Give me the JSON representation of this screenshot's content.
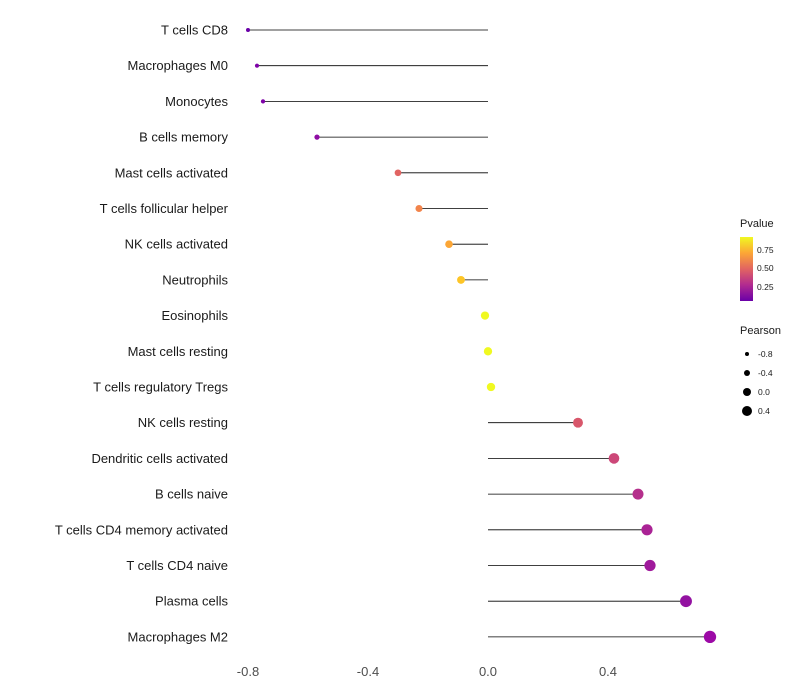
{
  "chart_data": {
    "type": "lollipop",
    "title": "",
    "xlabel": "",
    "ylabel": "",
    "x_ticks": [
      "-0.8",
      "-0.4",
      "0.0",
      "0.4"
    ],
    "xlim": [
      -0.9,
      0.85
    ],
    "grid": false,
    "legend_position": "right",
    "points": [
      {
        "label": "T cells CD8",
        "pearson": -0.8,
        "color": "#6a00a8"
      },
      {
        "label": "Macrophages M0",
        "pearson": -0.77,
        "color": "#7e03a8"
      },
      {
        "label": "Monocytes",
        "pearson": -0.75,
        "color": "#7e03a8"
      },
      {
        "label": "B cells memory",
        "pearson": -0.57,
        "color": "#8f0da4"
      },
      {
        "label": "Mast cells activated",
        "pearson": -0.3,
        "color": "#e16462"
      },
      {
        "label": "T cells follicular helper",
        "pearson": -0.23,
        "color": "#f2844b"
      },
      {
        "label": "NK cells activated",
        "pearson": -0.13,
        "color": "#fca636"
      },
      {
        "label": "Neutrophils",
        "pearson": -0.09,
        "color": "#fdc527"
      },
      {
        "label": "Eosinophils",
        "pearson": -0.01,
        "color": "#f0f921"
      },
      {
        "label": "Mast cells resting",
        "pearson": 0.0,
        "color": "#f0f921"
      },
      {
        "label": "T cells regulatory  Tregs",
        "pearson": 0.01,
        "color": "#f0f921"
      },
      {
        "label": "NK cells resting",
        "pearson": 0.3,
        "color": "#d8576b"
      },
      {
        "label": "Dendritic cells activated",
        "pearson": 0.42,
        "color": "#cc4778"
      },
      {
        "label": "B cells naive",
        "pearson": 0.5,
        "color": "#b52f8c"
      },
      {
        "label": "T cells CD4 memory activated",
        "pearson": 0.53,
        "color": "#aa2395"
      },
      {
        "label": "T cells CD4 naive",
        "pearson": 0.54,
        "color": "#a01a9c"
      },
      {
        "label": "Plasma cells",
        "pearson": 0.66,
        "color": "#9312a1"
      },
      {
        "label": "Macrophages M2",
        "pearson": 0.74,
        "color": "#9c09a6"
      }
    ],
    "legend": {
      "pvalue": {
        "title": "Pvalue",
        "ticks": [
          "0.75",
          "0.50",
          "0.25"
        ],
        "tick_offsets": [
          0.2,
          0.49,
          0.78
        ],
        "gradient": [
          "#f0f921",
          "#fca636",
          "#e16462",
          "#b12a90",
          "#6a00a8"
        ]
      },
      "pearson": {
        "title": "Pearson",
        "ticks": [
          "-0.8",
          "-0.4",
          "0.0",
          "0.4"
        ]
      }
    },
    "axis_color": "#4d4d4d",
    "label_color": "#1a1a1a",
    "stick_color": "#000000"
  }
}
